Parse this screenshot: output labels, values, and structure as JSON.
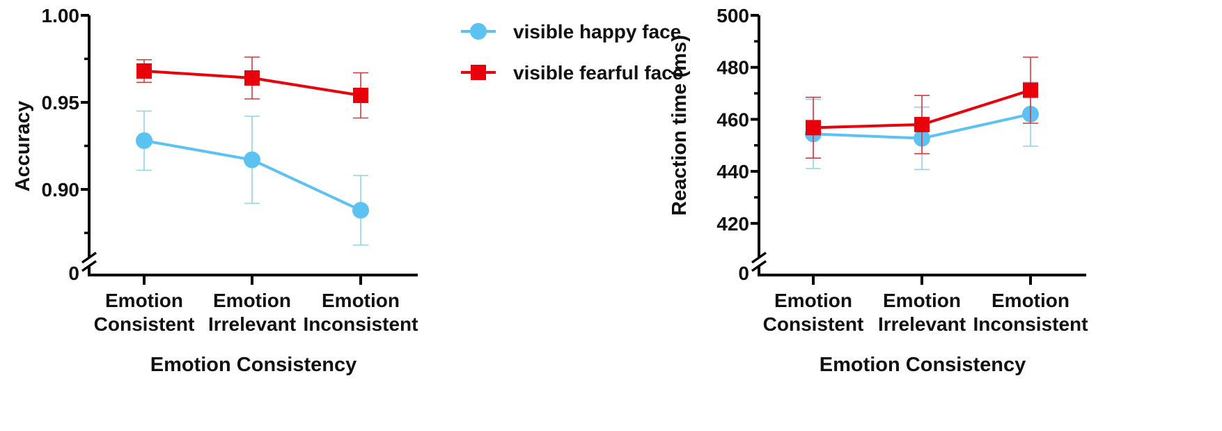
{
  "colors": {
    "happy": "#5BC2F2",
    "happy_err": "#8FD3EE",
    "fearful": "#E8000B",
    "fearful_err": "#D9363E",
    "axis": "#000000"
  },
  "legend": {
    "items": [
      {
        "label": "visible happy face",
        "marker": "circle",
        "color": "#5BC2F2"
      },
      {
        "label": "visible fearful face",
        "marker": "square",
        "color": "#E8000B"
      }
    ]
  },
  "chart_data": [
    {
      "type": "line",
      "title": "",
      "xlabel": "Emotion Consistency",
      "ylabel": "Accuracy",
      "categories": [
        [
          "Emotion",
          "Consistent"
        ],
        [
          "Emotion",
          "Irrelevant"
        ],
        [
          "Emotion",
          "Inconsistent"
        ]
      ],
      "ylim": [
        0.875,
        1.0
      ],
      "axis_break": true,
      "y_break_label": "0",
      "yticks": [
        0.9,
        0.95,
        1.0
      ],
      "ytick_labels": [
        "0.90",
        "0.95",
        "1.00"
      ],
      "minor_yticks": [
        0.875,
        0.925,
        0.975
      ],
      "grid": false,
      "legend_position": "right-outside",
      "series": [
        {
          "name": "visible happy face",
          "marker": "circle",
          "values": [
            0.928,
            0.917,
            0.888
          ],
          "error": [
            0.017,
            0.025,
            0.02
          ]
        },
        {
          "name": "visible fearful face",
          "marker": "square",
          "values": [
            0.968,
            0.964,
            0.954
          ],
          "error": [
            0.0065,
            0.012,
            0.013
          ]
        }
      ]
    },
    {
      "type": "line",
      "title": "",
      "xlabel": "Emotion Consistency",
      "ylabel": "Reaction time (ms)",
      "categories": [
        [
          "Emotion",
          "Consistent"
        ],
        [
          "Emotion",
          "Irrelevant"
        ],
        [
          "Emotion",
          "Inconsistent"
        ]
      ],
      "ylim": [
        410,
        500
      ],
      "axis_break": true,
      "y_break_label": "0",
      "yticks": [
        420,
        440,
        460,
        480,
        500
      ],
      "ytick_labels": [
        "420",
        "440",
        "460",
        "480",
        "500"
      ],
      "minor_yticks": [
        430,
        450,
        470,
        490
      ],
      "grid": false,
      "series": [
        {
          "name": "visible happy face",
          "marker": "circle",
          "values": [
            454.4,
            452.7,
            462.0
          ],
          "error": [
            13.3,
            12.0,
            12.3
          ]
        },
        {
          "name": "visible fearful face",
          "marker": "square",
          "values": [
            456.8,
            458.0,
            471.2
          ],
          "error": [
            11.7,
            11.2,
            12.7
          ]
        }
      ]
    }
  ]
}
